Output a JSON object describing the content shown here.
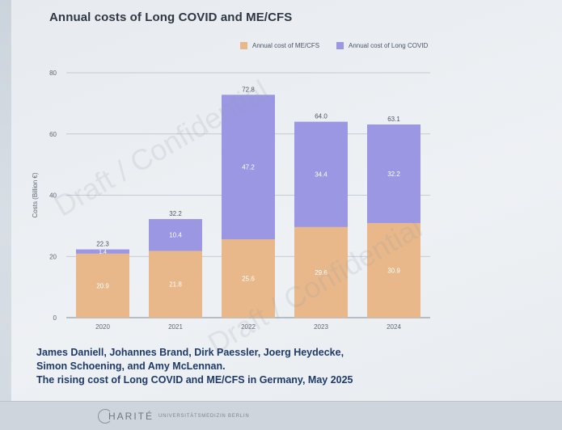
{
  "title": "Annual costs of Long COVID and ME/CFS",
  "legend": [
    {
      "label": "Annual cost of ME/CFS",
      "color": "#e8b88a"
    },
    {
      "label": "Annual cost of Long COVID",
      "color": "#9b97e3"
    }
  ],
  "watermark": "Draft / Confidential",
  "citation": {
    "line1": "James Daniell, Johannes Brand, Dirk Paessler, Joerg Heydecke,",
    "line2": "Simon Schoening, and Amy McLennan.",
    "line3": "The rising cost of Long COVID and ME/CFS in Germany, May 2025"
  },
  "footer": {
    "brand": "HARITÉ",
    "sub": "UNIVERSITÄTSMEDIZIN BERLIN"
  },
  "chart_data": {
    "type": "bar",
    "stacked": true,
    "categories": [
      "2020",
      "2021",
      "2022",
      "2023",
      "2024"
    ],
    "series": [
      {
        "name": "Annual cost of ME/CFS",
        "values": [
          20.9,
          21.8,
          25.6,
          29.6,
          30.9
        ],
        "labels": [
          "20.9",
          "21.8",
          "25.6",
          "29.6",
          "30.9"
        ],
        "color": "#e8b88a"
      },
      {
        "name": "Annual cost of Long COVID",
        "values": [
          1.4,
          10.4,
          47.2,
          34.4,
          32.2
        ],
        "labels": [
          "1.4",
          "10.4",
          "47.2",
          "34.4",
          "32.2"
        ],
        "color": "#9b97e3"
      }
    ],
    "totals": [
      "22.3",
      "32.2",
      "72.8",
      "64.0",
      "63.1"
    ],
    "ylabel": "Costs (Billion €)",
    "ylim": [
      0,
      80
    ],
    "yticks": [
      "0",
      "20",
      "40",
      "60",
      "80"
    ],
    "grid": true,
    "legend_position": "top-right"
  }
}
